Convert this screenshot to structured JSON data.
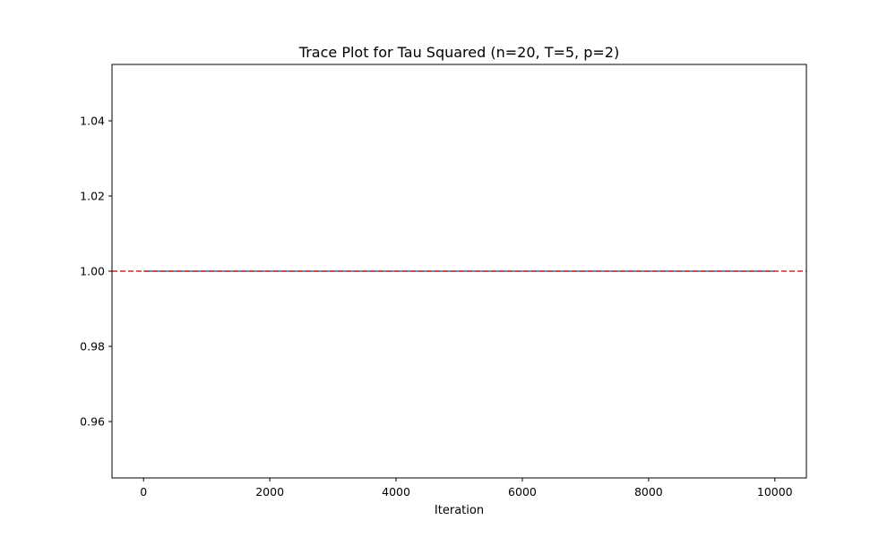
{
  "chart_data": {
    "type": "line",
    "title": "Trace Plot for Tau Squared (n=20, T=5, p=2)",
    "xlabel": "Iteration",
    "ylabel": "",
    "xlim": [
      -500,
      10500
    ],
    "ylim": [
      0.945,
      1.055
    ],
    "xticks": [
      0,
      2000,
      4000,
      6000,
      8000,
      10000
    ],
    "yticks": [
      0.96,
      0.98,
      1.0,
      1.02,
      1.04
    ],
    "xtick_labels": [
      "0",
      "2000",
      "4000",
      "6000",
      "8000",
      "10000"
    ],
    "ytick_labels": [
      "0.96",
      "0.98",
      "1.00",
      "1.02",
      "1.04"
    ],
    "grid": false,
    "series": [
      {
        "x": [
          0,
          10000
        ],
        "values": [
          1.0,
          1.0
        ],
        "color": "#1f77b4"
      }
    ],
    "reference_lines": [
      {
        "y": 1.0,
        "style": "dashed",
        "color": "#d62728"
      }
    ]
  }
}
